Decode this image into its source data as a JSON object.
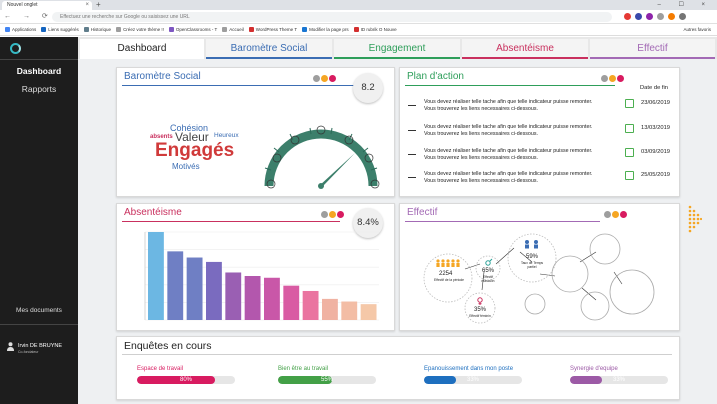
{
  "browser": {
    "tab_title": "Nouvel onglet",
    "tab_close": "×",
    "new_tab": "+",
    "window_controls": "– ☐ ×",
    "nav_buttons": "← → ⟳ ⌂",
    "omnibox_placeholder": "Effectuez une recherche sur Google ou saisissez une URL",
    "bookmarks": [
      {
        "label": "Applications",
        "color": "#4285f4"
      },
      {
        "label": "Liens suggérés",
        "color": "#1565c0"
      },
      {
        "label": "Historique",
        "color": "#607d8b"
      },
      {
        "label": "Créez votre thème !!",
        "color": "#9e9e9e"
      },
      {
        "label": "OpenClassrooms - T",
        "color": "#7e57c2"
      },
      {
        "label": "Accueil",
        "color": "#9e9e9e"
      },
      {
        "label": "WordPress Theme T",
        "color": "#d32f2f"
      },
      {
        "label": "Modifier la page prs",
        "color": "#1976d2"
      },
      {
        "label": "ID rubrik O Nouve",
        "color": "#d32f2f"
      }
    ],
    "bookmarks_right": "Autres favoris",
    "ext_colors": [
      "#e53935",
      "#3949ab",
      "#8e24aa",
      "#9e9e9e",
      "#f57c00",
      "#757575"
    ]
  },
  "sidebar": {
    "items": [
      {
        "label": "Dashboard"
      },
      {
        "label": "Rapports"
      }
    ],
    "documents": "Mes documents",
    "user_name": "Irvin DE BRUYNE",
    "user_role": "Co-fondateur"
  },
  "tabs": [
    {
      "label": "Dashboard",
      "color": "#222222",
      "accent": "#ffffff"
    },
    {
      "label": "Baromètre Social",
      "color": "#3b6db3",
      "accent": "#3b6db3"
    },
    {
      "label": "Engagement",
      "color": "#2e9e5a",
      "accent": "#2e9e5a"
    },
    {
      "label": "Absentéisme",
      "color": "#c9305e",
      "accent": "#c9305e"
    },
    {
      "label": "Effectif",
      "color": "#a36ab5",
      "accent": "#a36ab5"
    }
  ],
  "barometre": {
    "title": "Baromètre Social",
    "score": "8.2",
    "title_color": "#3b6db3",
    "line_color": "#3b6db3",
    "words": [
      {
        "text": "Cohésion",
        "color": "#3b6db3"
      },
      {
        "text": "absents",
        "color": "#c9305e"
      },
      {
        "text": "Valeur",
        "color": "#444444"
      },
      {
        "text": "Heureux",
        "color": "#3b6db3"
      },
      {
        "text": "Engagés",
        "color": "#d03a3a"
      },
      {
        "text": "Motivés",
        "color": "#3b6db3"
      }
    ],
    "gauge_color": "#3c7f6b"
  },
  "dot_colors": [
    "#9e9e9e",
    "#f5a623",
    "#d81b60"
  ],
  "plan": {
    "title": "Plan d'action",
    "title_color": "#2e9e5a",
    "line_color": "#2e9e5a",
    "date_header": "Date de fin",
    "rows": [
      {
        "line1": "Vous devez réaliser telle tache afin que telle indicateur puisse remonter.",
        "line2": "Vous trouverez les liens necessaires ci-dessous.",
        "date": "23/06/2019"
      },
      {
        "line1": "Vous devez réaliser telle tache afin que telle indicateur puisse remonter.",
        "line2": "Vous trouverez les liens necessaires ci-dessous.",
        "date": "13/03/2019"
      },
      {
        "line1": "Vous devez réaliser telle tache afin que telle indicateur puisse remonter.",
        "line2": "Vous trouverez les liens necessaires ci-dessous.",
        "date": "03/09/2019"
      },
      {
        "line1": "Vous devez réaliser telle tache afin que telle indicateur puisse remonter.",
        "line2": "Vous trouverez les liens necessaires ci-dessous.",
        "date": "25/05/2019"
      }
    ]
  },
  "absenteisme": {
    "title": "Absentéisme",
    "score": "8.4%",
    "title_color": "#c9305e",
    "line_color": "#c9305e"
  },
  "chart_data": {
    "type": "bar",
    "title": "",
    "values": [
      100,
      78,
      71,
      66,
      54,
      50,
      48,
      39,
      33,
      24,
      21,
      18
    ],
    "colors": [
      "#6cb7e3",
      "#6f7fc4",
      "#6f7fc4",
      "#7a6bbf",
      "#9a5fb3",
      "#b357ad",
      "#c957a8",
      "#d95ba3",
      "#ea74a0",
      "#f0b2a2",
      "#f3bda5",
      "#f5c8a8"
    ],
    "ylim": [
      0,
      100
    ],
    "grid": true
  },
  "effectif": {
    "title": "Effectif",
    "title_color": "#a36ab5",
    "line_color": "#a36ab5",
    "total_value": "2254",
    "total_label": "Effectif de la période",
    "male_pct": "65%",
    "male_label": "Effectif masculin",
    "female_pct": "35%",
    "female_label": "Effectif féminin",
    "parttime_pct": "59%",
    "parttime_label": "Taux de Temps partiel"
  },
  "enquetes": {
    "title": "Enquêtes en cours",
    "items": [
      {
        "label": "Espace de travail",
        "pct": "80%",
        "value": 80,
        "color": "#d81b60"
      },
      {
        "label": "Bien être au travail",
        "pct": "55%",
        "value": 55,
        "color": "#43a047"
      },
      {
        "label": "Epanouissement dans mon poste",
        "pct": "33%",
        "value": 33,
        "color": "#1e6fbf"
      },
      {
        "label": "Synergie d'equipe",
        "pct": "33%",
        "value": 33,
        "color": "#9c5aa6"
      }
    ]
  }
}
